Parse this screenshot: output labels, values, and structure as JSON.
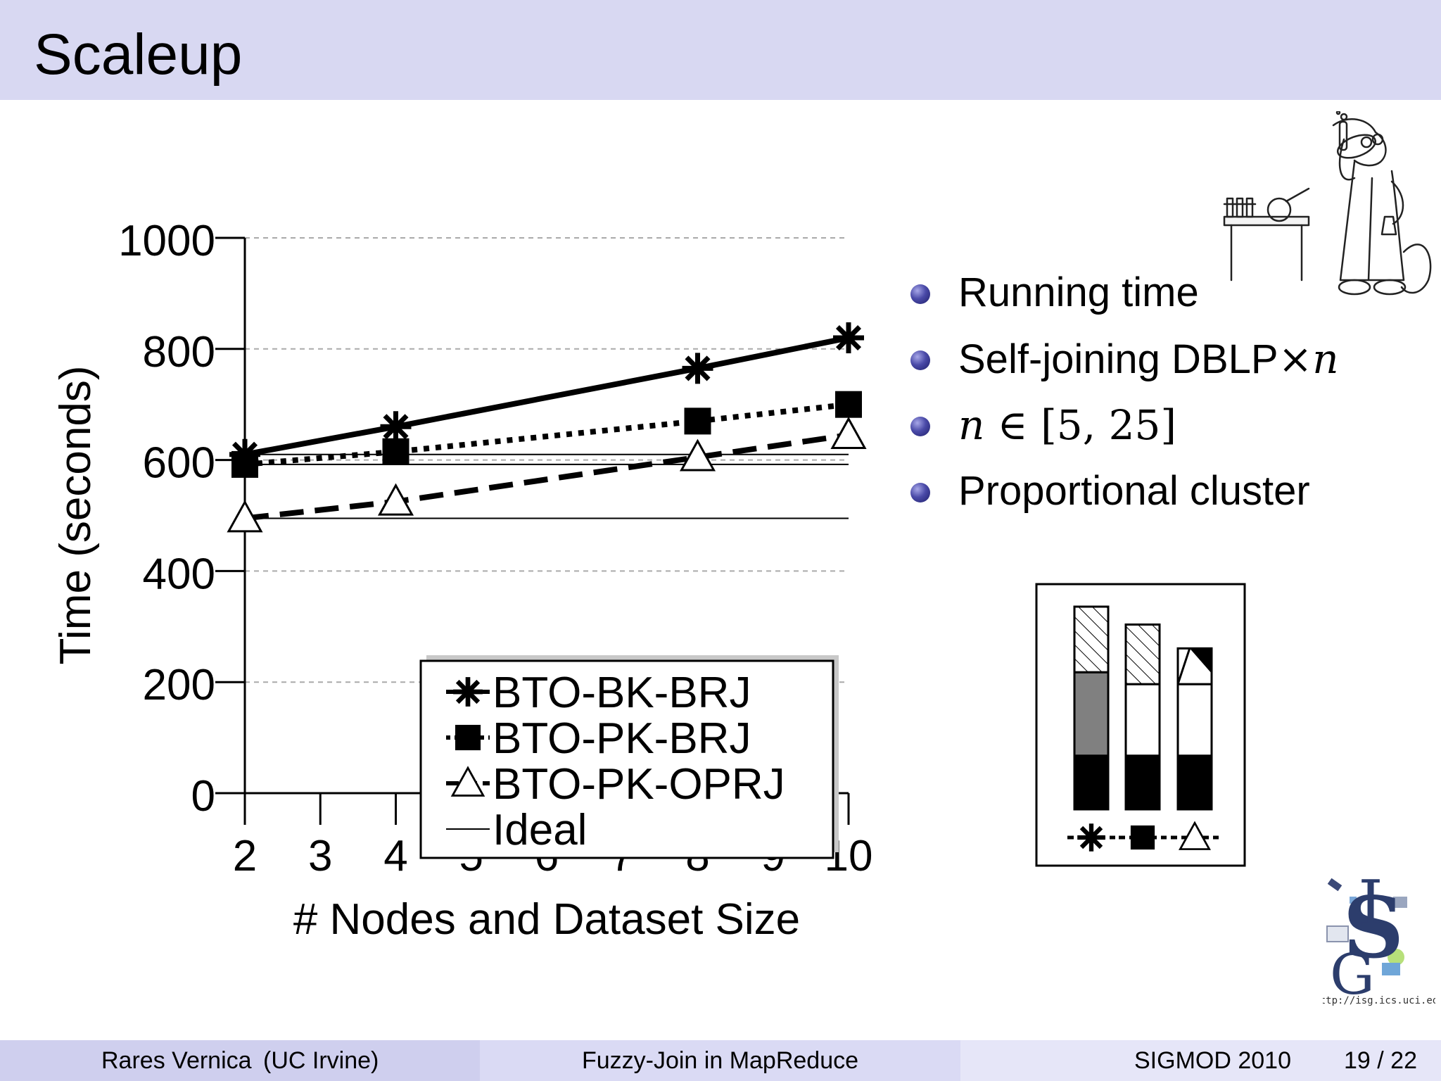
{
  "slide": {
    "title": "Scaleup",
    "bullets": [
      {
        "text": "Running time"
      },
      {
        "prefix": "Self-joining DBLP",
        "op": "×",
        "var": "n"
      },
      {
        "var": "n",
        "op": " ∈ ",
        "rest": "[5, 25]"
      },
      {
        "text": "Proportional cluster"
      }
    ],
    "logo_url_text": "http://isg.ics.uci.edu",
    "logo_letters": "ISG",
    "mascot_icon": "scientist-beaver-illustration",
    "colors": {
      "header_bg": "#d8d8f2",
      "bullet": "#3b3b9a",
      "footer_left": "#cfcfee",
      "footer_mid": "#dadaf4",
      "footer_right": "#e6e6f8"
    }
  },
  "footer": {
    "author": "Rares Vernica",
    "affiliation": "(UC Irvine)",
    "talk_title": "Fuzzy-Join in MapReduce",
    "venue": "SIGMOD 2010",
    "page": "19 / 22"
  },
  "chart_data": [
    {
      "type": "line",
      "title": "",
      "xlabel": "# Nodes and Dataset Size",
      "ylabel": "Time (seconds)",
      "xlim": [
        2,
        10
      ],
      "ylim": [
        0,
        1000
      ],
      "xticks": [
        2,
        3,
        4,
        5,
        6,
        7,
        8,
        9,
        10
      ],
      "yticks": [
        0,
        200,
        400,
        600,
        800,
        1000
      ],
      "grid": "horizontal dashed",
      "legend_position": "lower-right",
      "series": [
        {
          "name": "BTO-BK-BRJ",
          "x": [
            2,
            4,
            8,
            10
          ],
          "y": [
            610,
            660,
            765,
            820
          ],
          "marker": "asterisk",
          "line": "solid"
        },
        {
          "name": "BTO-PK-BRJ",
          "x": [
            2,
            4,
            8,
            10
          ],
          "y": [
            592,
            615,
            670,
            700
          ],
          "marker": "filled-square",
          "line": "dotted"
        },
        {
          "name": "BTO-PK-OPRJ",
          "x": [
            2,
            4,
            8,
            10
          ],
          "y": [
            495,
            525,
            605,
            645
          ],
          "marker": "open-triangle",
          "line": "dashed"
        },
        {
          "name": "Ideal",
          "x": [
            2,
            10
          ],
          "y": [
            610,
            610
          ],
          "marker": "none",
          "line": "thin"
        }
      ],
      "extra_ideal_lines": [
        {
          "x": [
            2,
            10
          ],
          "y": [
            592,
            592
          ]
        },
        {
          "x": [
            2,
            10
          ],
          "y": [
            495,
            495
          ]
        }
      ]
    },
    {
      "type": "bar",
      "stacked": true,
      "title": "",
      "categories": [
        "BTO-BK-BRJ",
        "BTO-PK-BRJ",
        "BTO-PK-OPRJ"
      ],
      "category_markers": [
        "asterisk",
        "filled-square",
        "open-triangle"
      ],
      "ymax": 340,
      "series": [
        {
          "pattern": "solid-black",
          "values": [
            90,
            90,
            90
          ]
        },
        {
          "pattern": "gray",
          "values": [
            140,
            0,
            0
          ]
        },
        {
          "pattern": "white",
          "values": [
            0,
            120,
            120
          ]
        },
        {
          "pattern": "hatched",
          "values": [
            110,
            100,
            0
          ]
        },
        {
          "pattern": "black-white-diagonal",
          "values": [
            0,
            0,
            60
          ]
        }
      ]
    }
  ]
}
